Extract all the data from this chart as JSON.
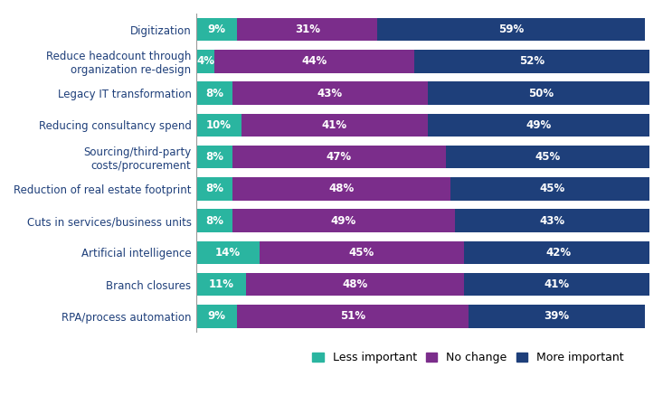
{
  "categories": [
    "Digitization",
    "Reduce headcount through\norganization re-design",
    "Legacy IT transformation",
    "Reducing consultancy spend",
    "Sourcing/third-party\ncosts/procurement",
    "Reduction of real estate footprint",
    "Cuts in services/business units",
    "Artificial intelligence",
    "Branch closures",
    "RPA/process automation"
  ],
  "less_important": [
    9,
    4,
    8,
    10,
    8,
    8,
    8,
    14,
    11,
    9
  ],
  "no_change": [
    31,
    44,
    43,
    41,
    47,
    48,
    49,
    45,
    48,
    51
  ],
  "more_important": [
    59,
    52,
    50,
    49,
    45,
    45,
    43,
    42,
    41,
    39
  ],
  "color_less": "#2ab5a0",
  "color_no": "#7b2d8b",
  "color_more": "#1e3f7a",
  "label_less": "Less important",
  "label_no": "No change",
  "label_more": "More important",
  "bar_height": 0.72,
  "text_color_bars": "#ffffff",
  "category_text_color": "#1e3f7a",
  "figsize": [
    7.33,
    4.48
  ],
  "dpi": 100
}
